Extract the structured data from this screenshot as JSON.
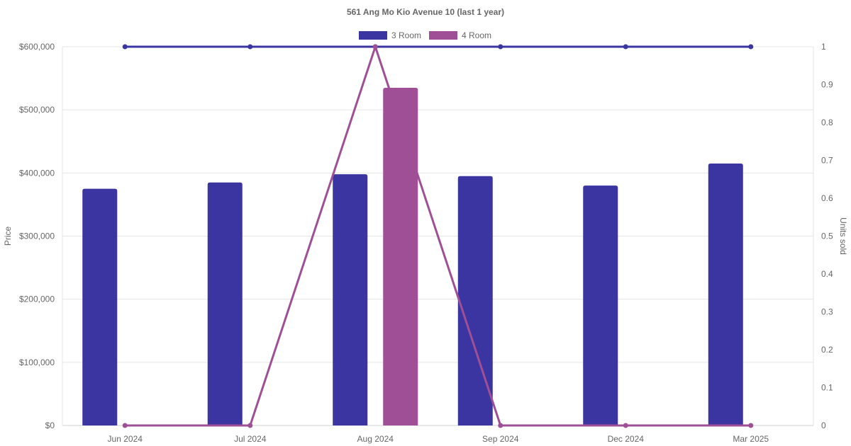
{
  "chart_data": {
    "type": "bar",
    "title": "561 Ang Mo Kio Avenue 10 (last 1 year)",
    "categories": [
      "Jun 2024",
      "Jul 2024",
      "Aug 2024",
      "Sep 2024",
      "Dec 2024",
      "Mar 2025"
    ],
    "y_left": {
      "label": "Price",
      "range": [
        0,
        600000
      ],
      "ticks": [
        0,
        100000,
        200000,
        300000,
        400000,
        500000,
        600000
      ],
      "tick_labels": [
        "$0",
        "$100,000",
        "$200,000",
        "$300,000",
        "$400,000",
        "$500,000",
        "$600,000"
      ]
    },
    "y_right": {
      "label": "Units sold",
      "range": [
        0,
        1
      ],
      "ticks": [
        0,
        0.1,
        0.2,
        0.3,
        0.4,
        0.5,
        0.6,
        0.7,
        0.8,
        0.9,
        1
      ],
      "tick_labels": [
        "0",
        "0.1",
        "0.2",
        "0.3",
        "0.4",
        "0.5",
        "0.6",
        "0.7",
        "0.8",
        "0.9",
        "1"
      ]
    },
    "series": [
      {
        "name": "3 Room",
        "color": "#3a35a0",
        "prices": [
          375000,
          385000,
          398000,
          395000,
          380000,
          415000
        ],
        "units_sold": [
          1,
          1,
          1,
          1,
          1,
          1
        ]
      },
      {
        "name": "4 Room",
        "color": "#9e4f96",
        "prices": [
          null,
          null,
          535000,
          null,
          null,
          null
        ],
        "units_sold": [
          0,
          0,
          1,
          0,
          0,
          0
        ]
      }
    ],
    "legend_position": "top-center",
    "grid": true
  }
}
